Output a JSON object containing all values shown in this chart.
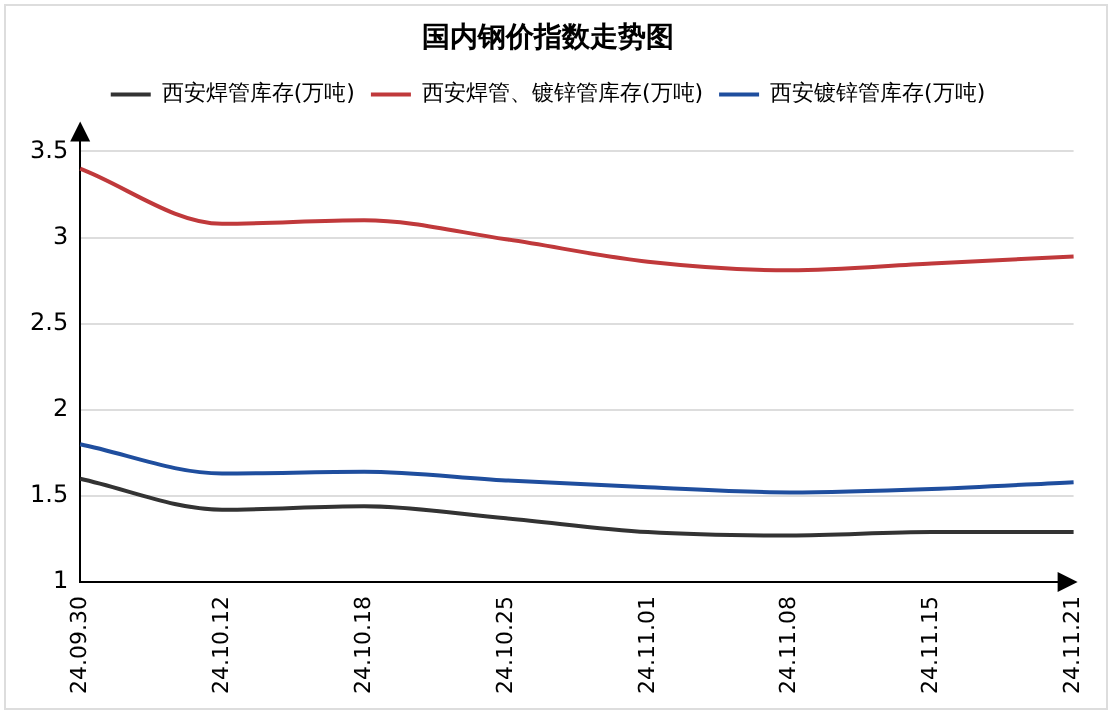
{
  "chart_data": {
    "type": "line",
    "title": "国内钢价指数走势图",
    "categories": [
      "24.09.30",
      "24.10.12",
      "24.10.18",
      "24.10.25",
      "24.11.01",
      "24.11.08",
      "24.11.15",
      "24.11.21"
    ],
    "series": [
      {
        "name": "西安焊管库存(万吨)",
        "color": "#333333",
        "values": [
          1.6,
          1.42,
          1.44,
          1.37,
          1.29,
          1.27,
          1.29,
          1.29
        ]
      },
      {
        "name": "西安焊管、镀锌管库存(万吨)",
        "color": "#c0393b",
        "values": [
          3.4,
          3.08,
          3.1,
          2.99,
          2.86,
          2.81,
          2.85,
          2.89
        ]
      },
      {
        "name": "西安镀锌管库存(万吨)",
        "color": "#1f4e9e",
        "values": [
          1.8,
          1.63,
          1.64,
          1.59,
          1.55,
          1.52,
          1.54,
          1.58
        ]
      }
    ],
    "ylim": [
      1,
      3.65
    ],
    "yticks": [
      1,
      1.5,
      2,
      2.5,
      3,
      3.5
    ],
    "grid": "y",
    "legend": "top",
    "marker": "none",
    "line_style": "solid"
  }
}
